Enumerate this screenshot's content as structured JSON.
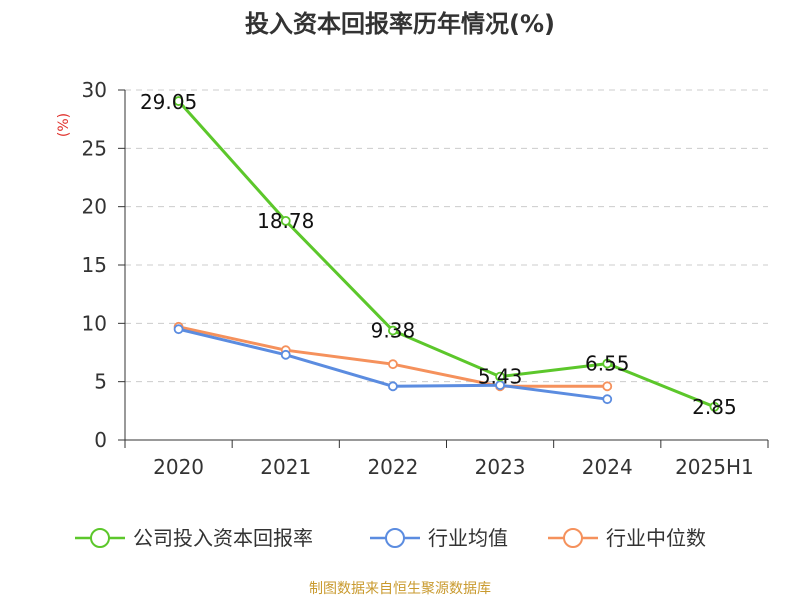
{
  "chart_data": {
    "type": "line",
    "title": "投入资本回报率历年情况(%)",
    "ylabel": "(%)",
    "xlabel": "",
    "categories": [
      "2020",
      "2021",
      "2022",
      "2023",
      "2024",
      "2025H1"
    ],
    "ylim": [
      0,
      30
    ],
    "yticks": [
      "0",
      "5",
      "10",
      "15",
      "20",
      "25",
      "30"
    ],
    "grid": true,
    "legend_position": "bottom",
    "series": [
      {
        "name": "公司投入资本回报率",
        "color": "#5cc72b",
        "values": [
          29.05,
          18.78,
          9.38,
          5.43,
          6.55,
          2.85
        ],
        "labels": [
          "29.05",
          "18.78",
          "9.38",
          "5.43",
          "6.55",
          "2.85"
        ]
      },
      {
        "name": "行业均值",
        "color": "#5b8ce0",
        "values": [
          9.5,
          7.3,
          4.6,
          4.7,
          3.5,
          null
        ]
      },
      {
        "name": "行业中位数",
        "color": "#f5915c",
        "values": [
          9.7,
          7.7,
          6.5,
          4.6,
          4.6,
          null
        ]
      }
    ],
    "source": "制图数据来自恒生聚源数据库",
    "colors": {
      "axis": "#333333",
      "grid": "#cccccc",
      "unit": "#e0312c",
      "source": "#c99a2e"
    }
  }
}
